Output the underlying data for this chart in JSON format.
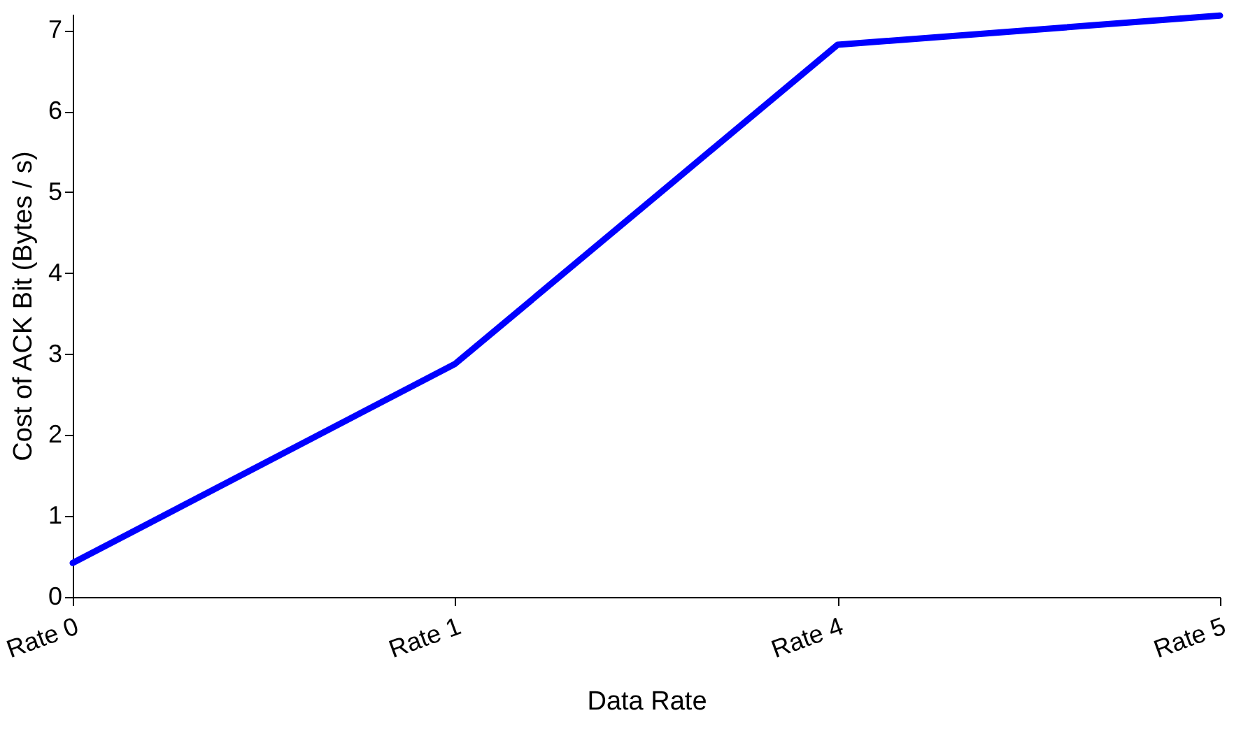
{
  "chart_data": {
    "type": "line",
    "xlabel": "Data Rate",
    "ylabel": "Cost of ACK Bit (Bytes / s)",
    "categories": [
      "Rate 0",
      "Rate 1",
      "Rate 4",
      "Rate 5"
    ],
    "series": [
      {
        "color": "#0000ff",
        "values": [
          0.42,
          2.88,
          6.82,
          7.18
        ]
      }
    ],
    "ylim": [
      0,
      7.2
    ],
    "yticks": [
      0,
      1,
      2,
      3,
      4,
      5,
      6,
      7
    ],
    "grid": false,
    "marker": "none",
    "line_style": "solid"
  }
}
